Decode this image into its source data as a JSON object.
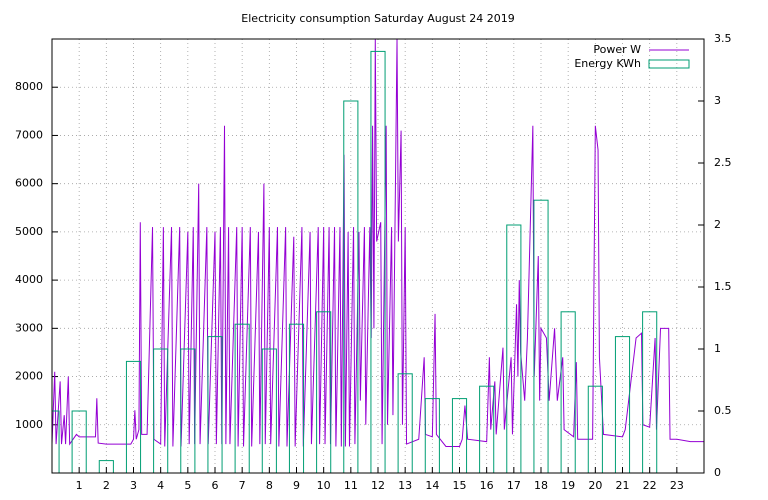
{
  "chart_data": {
    "type": "line",
    "title": "Electricity consumption Saturday August 24 2019",
    "xlim": [
      0,
      24
    ],
    "xticks": [
      1,
      2,
      3,
      4,
      5,
      6,
      7,
      8,
      9,
      10,
      11,
      12,
      13,
      14,
      15,
      16,
      17,
      18,
      19,
      20,
      21,
      22,
      23
    ],
    "ylim": [
      0,
      9000
    ],
    "yticks": [
      1000,
      2000,
      3000,
      4000,
      5000,
      6000,
      7000,
      8000
    ],
    "y2lim": [
      0,
      3.5
    ],
    "y2ticks": [
      0,
      0.5,
      1,
      1.5,
      2,
      2.5,
      3,
      3.5
    ],
    "grid": true,
    "legend": "top-right",
    "series": [
      {
        "name": "Power W",
        "color": "#9400d3",
        "type": "line",
        "x": [
          0.0,
          0.1,
          0.15,
          0.3,
          0.35,
          0.45,
          0.5,
          0.6,
          0.65,
          0.9,
          1.0,
          1.6,
          1.65,
          1.7,
          2.0,
          2.9,
          3.0,
          3.05,
          3.1,
          3.2,
          3.25,
          3.3,
          3.5,
          3.7,
          3.75,
          4.0,
          4.1,
          4.15,
          4.4,
          4.45,
          4.7,
          4.75,
          5.0,
          5.05,
          5.2,
          5.25,
          5.4,
          5.45,
          5.7,
          5.75,
          6.0,
          6.05,
          6.2,
          6.25,
          6.35,
          6.4,
          6.5,
          6.55,
          6.8,
          6.85,
          7.0,
          7.05,
          7.3,
          7.35,
          7.6,
          7.65,
          7.8,
          7.85,
          8.0,
          8.05,
          8.3,
          8.35,
          8.6,
          8.65,
          8.9,
          8.95,
          9.2,
          9.25,
          9.5,
          9.55,
          9.8,
          9.85,
          10.0,
          10.05,
          10.2,
          10.25,
          10.4,
          10.45,
          10.6,
          10.65,
          10.75,
          10.8,
          10.9,
          10.95,
          11.1,
          11.15,
          11.3,
          11.35,
          11.5,
          11.55,
          11.7,
          11.75,
          11.8,
          11.85,
          11.9,
          11.95,
          12.1,
          12.15,
          12.3,
          12.35,
          12.5,
          12.55,
          12.7,
          12.75,
          12.85,
          12.9,
          13.0,
          13.05,
          13.5,
          13.7,
          13.75,
          14.0,
          14.1,
          14.15,
          14.5,
          15.0,
          15.1,
          15.2,
          15.3,
          16.0,
          16.1,
          16.15,
          16.3,
          16.35,
          16.6,
          16.65,
          16.9,
          16.95,
          17.1,
          17.15,
          17.2,
          17.25,
          17.4,
          17.5,
          17.7,
          17.75,
          17.9,
          17.95,
          18.0,
          18.2,
          18.3,
          18.5,
          18.6,
          18.8,
          18.85,
          19.2,
          19.3,
          19.35,
          19.9,
          20.0,
          20.1,
          20.15,
          20.3,
          21.0,
          21.1,
          21.5,
          21.7,
          21.75,
          22.0,
          22.2,
          22.25,
          22.4,
          22.7,
          22.75,
          23.0,
          23.5,
          24.0
        ],
        "values": [
          600,
          2100,
          600,
          1900,
          600,
          1200,
          600,
          2000,
          600,
          800,
          750,
          750,
          1550,
          620,
          600,
          600,
          700,
          1300,
          700,
          900,
          5200,
          800,
          800,
          5100,
          700,
          600,
          5100,
          550,
          5100,
          550,
          5100,
          550,
          5000,
          600,
          5100,
          600,
          6000,
          600,
          5100,
          600,
          5000,
          600,
          5100,
          600,
          7200,
          600,
          5100,
          600,
          5100,
          550,
          5100,
          550,
          5100,
          550,
          5000,
          600,
          6000,
          600,
          5100,
          600,
          5100,
          550,
          5100,
          550,
          4900,
          550,
          5100,
          550,
          5000,
          600,
          5100,
          600,
          5100,
          600,
          5100,
          600,
          5100,
          550,
          5100,
          550,
          6600,
          550,
          5000,
          550,
          5100,
          600,
          5000,
          1500,
          5100,
          1000,
          5100,
          2800,
          7200,
          3000,
          9000,
          4800,
          5200,
          600,
          7200,
          1000,
          5100,
          1200,
          9000,
          4800,
          7100,
          1000,
          5100,
          600,
          700,
          2400,
          800,
          750,
          3300,
          800,
          550,
          550,
          700,
          1400,
          700,
          650,
          2400,
          900,
          1900,
          800,
          2600,
          900,
          2400,
          800,
          3500,
          2000,
          4000,
          2500,
          1500,
          2800,
          7200,
          2000,
          4500,
          1500,
          3000,
          2800,
          1500,
          3000,
          1500,
          2400,
          900,
          750,
          2300,
          700,
          700,
          7200,
          6700,
          2400,
          800,
          750,
          900,
          2800,
          2900,
          1000,
          950,
          2800,
          900,
          3000,
          3000,
          700,
          700,
          650,
          650
        ]
      },
      {
        "name": "Energy KWh",
        "color": "#009e73",
        "type": "bar",
        "axis": "y2",
        "x": [
          0,
          1,
          2,
          3,
          4,
          5,
          6,
          7,
          8,
          9,
          10,
          11,
          12,
          13,
          14,
          15,
          16,
          17,
          18,
          19,
          20,
          21,
          22
        ],
        "values": [
          0.5,
          0.5,
          0.1,
          0.9,
          1.0,
          1.0,
          1.1,
          1.2,
          1.0,
          1.2,
          1.3,
          3.0,
          3.4,
          0.8,
          0.6,
          0.6,
          0.7,
          2.0,
          2.2,
          1.3,
          0.7,
          1.1,
          1.3
        ]
      }
    ]
  }
}
